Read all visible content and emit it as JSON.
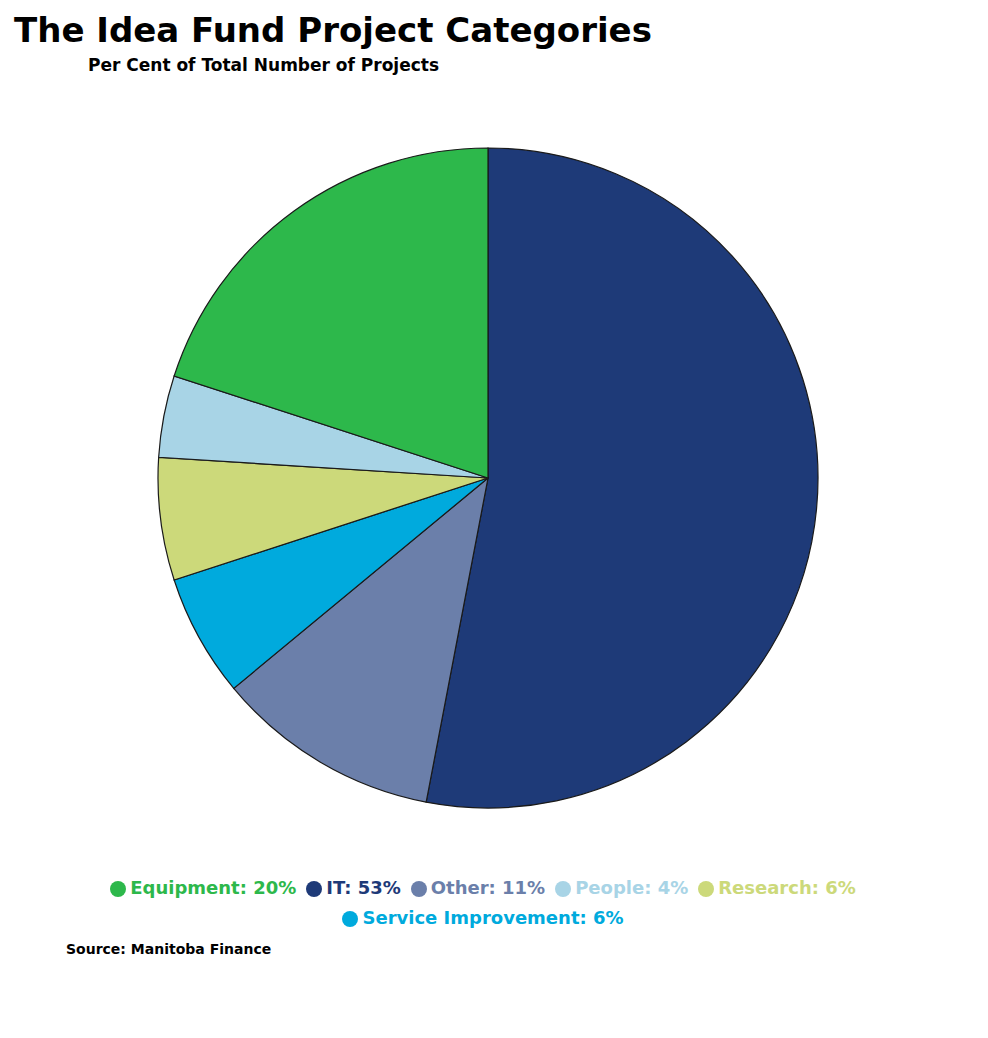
{
  "chart_data": {
    "type": "pie",
    "title": "The Idea Fund Project Categories",
    "subtitle": "Per Cent of Total Number of Projects",
    "source": "Source: Manitoba Finance",
    "categories": [
      "IT: 53%",
      "Other: 11%",
      "Service Improvement: 6%",
      "Research: 6%",
      "People: 4%",
      "Equipment: 20%"
    ],
    "values": [
      53,
      11,
      6,
      6,
      4,
      20
    ],
    "colors": [
      "#1e3a78",
      "#6b7faa",
      "#00aadd",
      "#ccd97a",
      "#a8d4e6",
      "#2db84b"
    ],
    "legend": "bottom"
  }
}
